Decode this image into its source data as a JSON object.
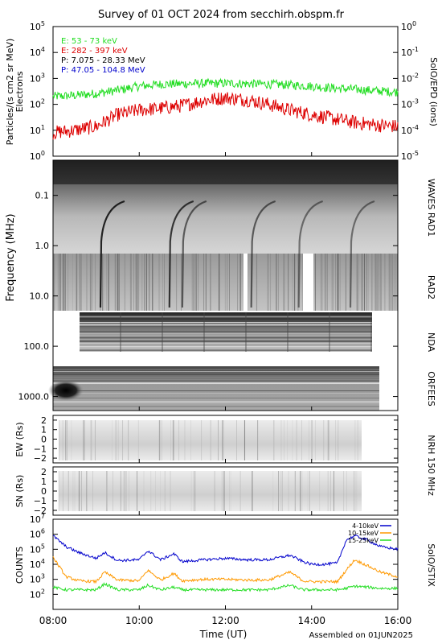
{
  "title": "Survey of 01 OCT 2024 from secchirh.obspm.fr",
  "footer": "Assembled on 01JUN2025",
  "xlabel": "Time (UT)",
  "x_ticks": [
    "08:00",
    "10:00",
    "12:00",
    "14:00",
    "16:00"
  ],
  "chart_data": [
    {
      "type": "line",
      "panel": "epd",
      "ylabel_left": "Particles/(s cm2 sr MeV)",
      "ylabel_left2": "Electrons",
      "ylabel_right": "SolO/EPD (ions)",
      "yscale": "log",
      "ylim_left": [
        1,
        100000
      ],
      "ylim_right": [
        1e-05,
        1
      ],
      "y_ticks_left": [
        {
          "base": "10",
          "exp": "0"
        },
        {
          "base": "10",
          "exp": "1"
        },
        {
          "base": "10",
          "exp": "2"
        },
        {
          "base": "10",
          "exp": "3"
        },
        {
          "base": "10",
          "exp": "4"
        },
        {
          "base": "10",
          "exp": "5"
        }
      ],
      "y_ticks_right": [
        {
          "base": "10",
          "exp": "-5"
        },
        {
          "base": "10",
          "exp": "-4"
        },
        {
          "base": "10",
          "exp": "-3"
        },
        {
          "base": "10",
          "exp": "-2"
        },
        {
          "base": "10",
          "exp": "-1"
        },
        {
          "base": "10",
          "exp": "0"
        }
      ],
      "legend_position": "top-left",
      "series": [
        {
          "name": "E: 53 - 73 keV",
          "color": "#22dd22",
          "x": [
            8.0,
            8.5,
            9.0,
            9.5,
            10.0,
            10.5,
            11.0,
            11.5,
            12.0,
            12.5,
            13.0,
            13.5,
            14.0,
            14.5,
            15.0,
            15.5,
            16.0
          ],
          "values": [
            200,
            220,
            260,
            350,
            500,
            600,
            620,
            640,
            650,
            630,
            600,
            560,
            500,
            420,
            380,
            330,
            300
          ]
        },
        {
          "name": "E: 282 - 397 keV",
          "color": "#dd0000",
          "x": [
            8.0,
            8.5,
            9.0,
            9.5,
            10.0,
            10.5,
            11.0,
            11.5,
            12.0,
            12.5,
            13.0,
            13.5,
            14.0,
            14.5,
            15.0,
            15.5,
            16.0
          ],
          "values": [
            8,
            10,
            14,
            40,
            60,
            70,
            90,
            140,
            180,
            150,
            100,
            60,
            40,
            28,
            20,
            16,
            14
          ]
        },
        {
          "name": "P: 7.075 - 28.33 MeV",
          "color": "#000000",
          "x": [],
          "values": []
        },
        {
          "name": "P: 47.05 - 104.8 MeV",
          "color": "#0000cc",
          "x": [],
          "values": []
        }
      ]
    },
    {
      "type": "heatmap",
      "panel": "radio",
      "ylabel": "Frequency (MHz)",
      "yscale": "log",
      "ylim": [
        0.02,
        1900
      ],
      "y_ticks": [
        "0.1",
        "1.0",
        "10.0",
        "100.0",
        "1000.0"
      ],
      "right_labels": [
        "WAVES RAD1",
        "RAD2",
        "NDA",
        "ORFEES"
      ]
    },
    {
      "type": "heatmap",
      "panel": "nrh-ew",
      "ylabel": "EW (Rs)",
      "ylim": [
        -2.5,
        2.5
      ],
      "y_ticks": [
        "2",
        "1",
        "0",
        "−1",
        "−2"
      ],
      "right_label": "NRH 150 MHz"
    },
    {
      "type": "heatmap",
      "panel": "nrh-sn",
      "ylabel": "SN (Rs)",
      "ylim": [
        -2.5,
        2.5
      ],
      "y_ticks": [
        "2",
        "1",
        "0",
        "−1",
        "−2"
      ]
    },
    {
      "type": "line",
      "panel": "stix",
      "ylabel": "COUNTS",
      "ylabel_right": "SolO/STIX",
      "yscale": "log",
      "ylim": [
        10,
        10000000
      ],
      "y_ticks": [
        {
          "base": "10",
          "exp": "2"
        },
        {
          "base": "10",
          "exp": "3"
        },
        {
          "base": "10",
          "exp": "4"
        },
        {
          "base": "10",
          "exp": "5"
        },
        {
          "base": "10",
          "exp": "6"
        },
        {
          "base": "10",
          "exp": "7"
        }
      ],
      "legend_position": "top-right",
      "series": [
        {
          "name": "4-10keV",
          "color": "#0000cc",
          "x": [
            8.0,
            8.3,
            8.6,
            9.0,
            9.2,
            9.5,
            10.0,
            10.2,
            10.5,
            10.8,
            11.0,
            11.5,
            12.0,
            12.5,
            13.0,
            13.5,
            13.8,
            14.0,
            14.3,
            14.6,
            14.8,
            15.0,
            15.3,
            15.6,
            16.0
          ],
          "values": [
            800000,
            150000,
            60000,
            25000,
            60000,
            18000,
            20000,
            80000,
            20000,
            50000,
            15000,
            20000,
            25000,
            20000,
            20000,
            40000,
            15000,
            10000,
            10000,
            12000,
            400000,
            800000,
            400000,
            150000,
            100000
          ]
        },
        {
          "name": "10-15keV",
          "color": "#ff9900",
          "x": [
            8.0,
            8.3,
            8.6,
            9.0,
            9.2,
            9.5,
            10.0,
            10.2,
            10.5,
            10.8,
            11.0,
            11.5,
            12.0,
            12.5,
            13.0,
            13.5,
            13.8,
            14.0,
            14.3,
            14.6,
            14.8,
            15.0,
            15.3,
            15.6,
            16.0
          ],
          "values": [
            30000,
            1500,
            800,
            700,
            3000,
            900,
            800,
            4000,
            900,
            2500,
            800,
            1000,
            1000,
            900,
            900,
            3000,
            800,
            700,
            700,
            700,
            4000,
            20000,
            8000,
            3000,
            1500
          ]
        },
        {
          "name": "15-25keV",
          "color": "#22dd22",
          "x": [
            8.0,
            8.3,
            8.6,
            9.0,
            9.2,
            9.5,
            10.0,
            10.2,
            10.5,
            10.8,
            11.0,
            11.5,
            12.0,
            12.5,
            13.0,
            13.5,
            13.8,
            14.0,
            14.3,
            14.6,
            14.8,
            15.0,
            15.3,
            15.6,
            16.0
          ],
          "values": [
            300,
            200,
            200,
            200,
            500,
            200,
            200,
            400,
            200,
            300,
            200,
            200,
            200,
            200,
            200,
            400,
            200,
            200,
            200,
            200,
            250,
            350,
            300,
            250,
            250
          ]
        }
      ]
    }
  ]
}
